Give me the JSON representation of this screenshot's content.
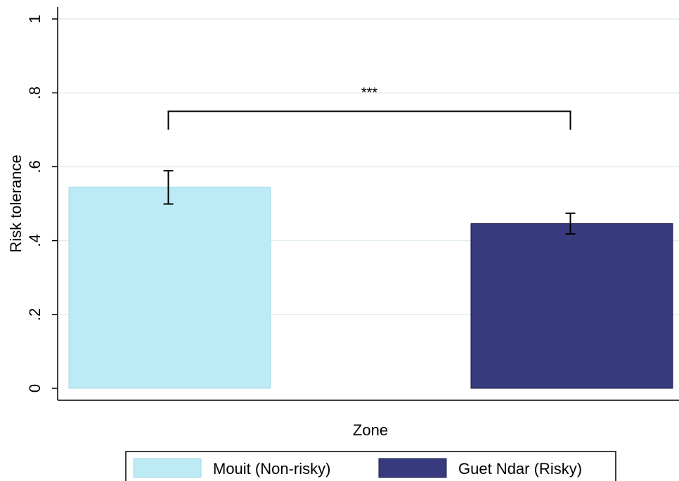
{
  "chart_data": {
    "type": "bar",
    "title": "",
    "xlabel": "Zone",
    "ylabel": "Risk tolerance",
    "ylim": [
      0,
      1
    ],
    "yticks": [
      0,
      0.2,
      0.4,
      0.6,
      0.8,
      1
    ],
    "ytick_labels": [
      "0",
      ".2",
      ".4",
      ".6",
      ".8",
      "1"
    ],
    "grid": true,
    "series": [
      {
        "name": "Mouit (Non-risky)",
        "value": 0.545,
        "ci_low": 0.499,
        "ci_high": 0.589,
        "color": "#bdebf5",
        "stroke": "#a9dbe6"
      },
      {
        "name": "Guet Ndar (Risky)",
        "value": 0.446,
        "ci_low": 0.418,
        "ci_high": 0.474,
        "color": "#383a7e",
        "stroke": "#1a1c4a"
      }
    ],
    "annotation": {
      "text": "***",
      "between": [
        0,
        1
      ],
      "y_bracket": 0.75,
      "y_legs": 0.7
    },
    "legend": {
      "position": "bottom"
    }
  }
}
